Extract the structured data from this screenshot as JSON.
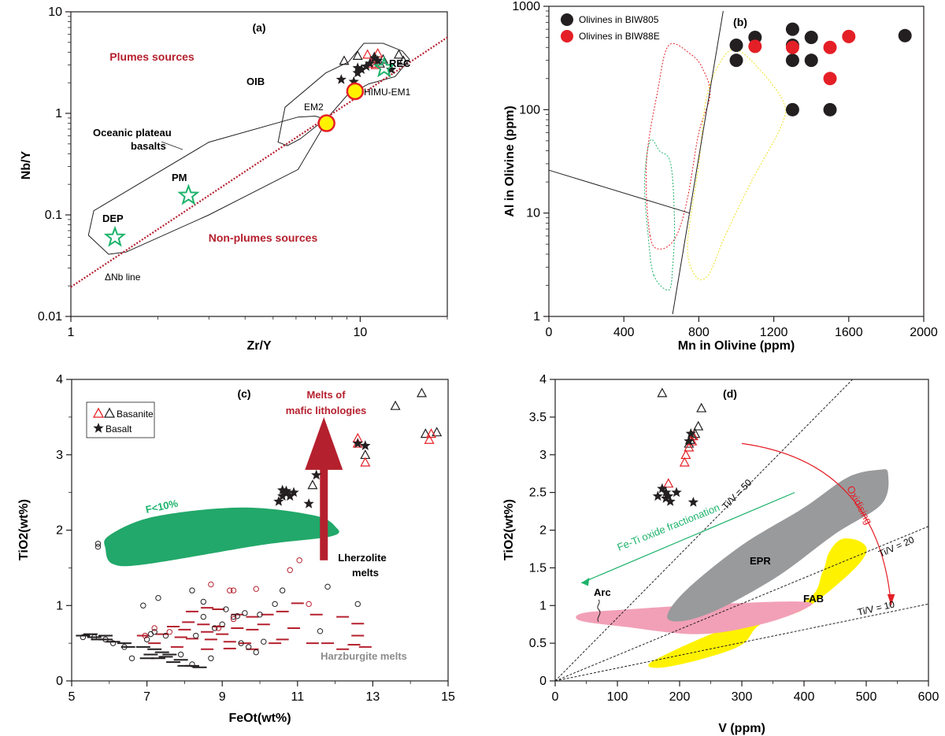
{
  "colors": {
    "black": "#231f20",
    "red": "#e41f26",
    "darkred": "#b5202e",
    "green": "#1db36b",
    "greenFill": "#22a86a",
    "gray": "#999a9c",
    "pink": "#f2a0b7",
    "yellow": "#fff200",
    "grayText": "#8c8c8c"
  },
  "chart_data": [
    {
      "panel": "(a)",
      "type": "scatter",
      "log_x": true,
      "log_y": true,
      "xlabel": "Zr/Y",
      "ylabel": "Nb/Y",
      "xlim": [
        1,
        20
      ],
      "ylim": [
        0.01,
        10
      ],
      "xticks": [
        {
          "v": 1,
          "label": "1"
        },
        {
          "v": 10,
          "label": "10"
        }
      ],
      "yticks": [
        {
          "v": 0.01,
          "label": "0.01"
        },
        {
          "v": 0.1,
          "label": "0.1"
        },
        {
          "v": 1,
          "label": "1"
        },
        {
          "v": 10,
          "label": "10"
        }
      ],
      "text": {
        "plumes": "Plumes sources",
        "nonplumes": "Non-plumes sources",
        "oib": "OIB",
        "oceanic1": "Oceanic plateau",
        "oceanic2": "basalts",
        "rec": "REC",
        "himu": "HIMU-EM1",
        "em2": "EM2",
        "pm": "PM",
        "dep": "DEP",
        "dnb": "ΔNb line"
      },
      "delta_nb_line": [
        [
          1,
          0.0195
        ],
        [
          20,
          5.6
        ]
      ],
      "oib_field": [
        [
          5.2,
          0.52
        ],
        [
          5.5,
          1.15
        ],
        [
          7.6,
          2.5
        ],
        [
          9.1,
          3.2
        ],
        [
          10.3,
          4.9
        ],
        [
          12,
          4.9
        ],
        [
          14,
          4.1
        ],
        [
          14.8,
          3.4
        ],
        [
          13.2,
          2.3
        ],
        [
          10.7,
          1.95
        ],
        [
          9,
          1.5
        ],
        [
          7.8,
          0.94
        ],
        [
          6.2,
          0.56
        ],
        [
          5.6,
          0.48
        ]
      ],
      "plateau_field": [
        [
          1.15,
          0.063
        ],
        [
          1.2,
          0.11
        ],
        [
          3,
          0.52
        ],
        [
          6.1,
          0.92
        ],
        [
          7,
          0.94
        ],
        [
          7.7,
          0.86
        ],
        [
          6.1,
          0.28
        ],
        [
          3,
          0.1
        ],
        [
          1.55,
          0.043
        ],
        [
          1.35,
          0.041
        ]
      ],
      "stars_black": [
        [
          8.6,
          2.15
        ],
        [
          9.5,
          2.05
        ],
        [
          9.8,
          2.5
        ],
        [
          10.1,
          2.7
        ],
        [
          10.5,
          2.9
        ],
        [
          9.8,
          2.8
        ],
        [
          11.5,
          3.3
        ],
        [
          12.8,
          2.7
        ],
        [
          10.8,
          3.1
        ],
        [
          11.2,
          3.5
        ]
      ],
      "triangles_black": [
        [
          8.8,
          3.3
        ],
        [
          9.8,
          3.7
        ],
        [
          11.2,
          3.6
        ],
        [
          11.7,
          3.1
        ],
        [
          13.6,
          3.8
        ],
        [
          14.1,
          3.3
        ],
        [
          12.0,
          3.4
        ]
      ],
      "triangles_red": [
        [
          10.6,
          3.8
        ],
        [
          11.0,
          3.1
        ],
        [
          11.5,
          3.9
        ],
        [
          11.3,
          3.0
        ]
      ],
      "ref_stars": [
        {
          "label": "PM",
          "x": 2.55,
          "y": 0.155
        },
        {
          "label": "DEP",
          "x": 1.42,
          "y": 0.06
        },
        {
          "label": "REC",
          "x": 12.1,
          "y": 2.8
        }
      ],
      "ref_circles": [
        {
          "label": "EM2",
          "x": 7.65,
          "y": 0.8
        },
        {
          "label": "HIMU-EM1",
          "x": 9.6,
          "y": 1.65
        }
      ]
    },
    {
      "panel": "(b)",
      "type": "scatter",
      "log_y": true,
      "xlabel": "Mn in Olivine (ppm)",
      "ylabel": "Al in Olivine (ppm)",
      "xlim": [
        0,
        2000
      ],
      "ylim": [
        1,
        1000
      ],
      "xticks": [
        0,
        400,
        800,
        1200,
        1600,
        2000
      ],
      "yticks": [
        {
          "v": 1,
          "label": "1"
        },
        {
          "v": 10,
          "label": "10"
        },
        {
          "v": 100,
          "label": "100"
        },
        {
          "v": 1000,
          "label": "1000"
        }
      ],
      "series": [
        {
          "name": "Olivines in BIW805",
          "color": "#231f20",
          "points": [
            [
              1000,
              420
            ],
            [
              1000,
              300
            ],
            [
              1100,
              500
            ],
            [
              1300,
              600
            ],
            [
              1300,
              420
            ],
            [
              1300,
              300
            ],
            [
              1400,
              500
            ],
            [
              1400,
              300
            ],
            [
              1300,
              100
            ],
            [
              1500,
              100
            ],
            [
              1900,
              520
            ]
          ]
        },
        {
          "name": "Olivines in BIW88E",
          "color": "#e41f26",
          "points": [
            [
              1100,
              410
            ],
            [
              1300,
              400
            ],
            [
              1500,
              400
            ],
            [
              1600,
              510
            ],
            [
              1500,
              200
            ]
          ]
        }
      ],
      "lines": [
        [
          [
            0,
            26
          ],
          [
            750,
            10
          ]
        ],
        [
          [
            660,
            1.05
          ],
          [
            930,
            900
          ]
        ]
      ]
    },
    {
      "panel": "(c)",
      "type": "scatter",
      "xlabel": "FeOt(wt%)",
      "ylabel": "TiO2(wt%)",
      "xlim": [
        5,
        15
      ],
      "ylim": [
        0,
        4
      ],
      "xticks": [
        5,
        7,
        9,
        11,
        13,
        15
      ],
      "yticks": [
        0,
        1,
        2,
        3,
        4
      ],
      "legend": [
        {
          "label": "Basanite"
        },
        {
          "label": "Basalt"
        }
      ],
      "text": {
        "melts1": "Melts of",
        "melts2": "mafic lithologies",
        "fl10": "F<10%",
        "lherz1": "Lherzolite",
        "lherz2": "melts",
        "harz": "Harzburgite melts"
      },
      "triangles_black": [
        [
          11.4,
          2.6
        ],
        [
          12.8,
          3.0
        ],
        [
          13.6,
          3.65
        ],
        [
          14.3,
          3.82
        ],
        [
          14.4,
          3.28
        ],
        [
          14.7,
          3.3
        ]
      ],
      "triangles_red": [
        [
          12.6,
          3.22
        ],
        [
          12.6,
          3.15
        ],
        [
          12.8,
          2.9
        ],
        [
          14.5,
          3.2
        ],
        [
          14.55,
          3.28
        ]
      ],
      "stars": [
        [
          10.5,
          2.38
        ],
        [
          10.6,
          2.45
        ],
        [
          10.7,
          2.5
        ],
        [
          10.8,
          2.45
        ],
        [
          10.9,
          2.5
        ],
        [
          10.7,
          2.52
        ],
        [
          11.3,
          2.35
        ],
        [
          11.5,
          2.73
        ],
        [
          12.6,
          3.15
        ],
        [
          12.8,
          3.12
        ],
        [
          10.6,
          2.53
        ]
      ],
      "circles_black": [
        [
          5.7,
          1.78
        ],
        [
          5.7,
          1.82
        ],
        [
          11.7,
          1.67
        ],
        [
          11.8,
          1.25
        ],
        [
          12.6,
          1.02
        ],
        [
          11.6,
          0.66
        ],
        [
          10.6,
          1.2
        ],
        [
          10.4,
          1.02
        ],
        [
          10.0,
          0.88
        ],
        [
          9.6,
          0.9
        ],
        [
          9.3,
          0.85
        ],
        [
          9.0,
          0.75
        ],
        [
          8.8,
          0.7
        ],
        [
          8.5,
          0.85
        ],
        [
          8.5,
          1.05
        ],
        [
          8.3,
          0.6
        ],
        [
          8.2,
          1.2
        ],
        [
          7.9,
          0.35
        ],
        [
          7.5,
          0.6
        ],
        [
          7.2,
          0.65
        ],
        [
          7.0,
          0.55
        ],
        [
          7.3,
          1.1
        ],
        [
          6.9,
          1.0
        ],
        [
          6.6,
          0.3
        ],
        [
          6.4,
          0.45
        ],
        [
          6.1,
          0.5
        ],
        [
          5.9,
          0.55
        ],
        [
          5.6,
          0.58
        ],
        [
          5.3,
          0.58
        ],
        [
          8.7,
          0.3
        ],
        [
          8.2,
          0.22
        ],
        [
          7.1,
          0.62
        ],
        [
          9.9,
          0.38
        ],
        [
          9.5,
          0.5
        ],
        [
          9.1,
          0.95
        ],
        [
          9.7,
          0.45
        ],
        [
          10.1,
          0.52
        ],
        [
          9.4,
          0.86
        ]
      ],
      "circles_red": [
        [
          8.7,
          1.28
        ],
        [
          9.2,
          1.2
        ],
        [
          9.3,
          1.2
        ],
        [
          9.9,
          1.22
        ],
        [
          10.8,
          1.47
        ],
        [
          11.05,
          1.6
        ],
        [
          11.3,
          1.02
        ],
        [
          9.3,
          0.82
        ],
        [
          8.9,
          0.7
        ],
        [
          7.2,
          0.7
        ],
        [
          7.6,
          0.65
        ],
        [
          6.95,
          0.6
        ]
      ],
      "dashes_red": [
        [
          8.2,
          0.92
        ],
        [
          8.6,
          0.97
        ],
        [
          8.9,
          0.95
        ],
        [
          9.4,
          0.88
        ],
        [
          9.8,
          0.85
        ],
        [
          10.2,
          0.88
        ],
        [
          10.6,
          0.92
        ],
        [
          8.1,
          0.78
        ],
        [
          8.5,
          0.75
        ],
        [
          8.9,
          0.72
        ],
        [
          9.4,
          0.7
        ],
        [
          9.8,
          0.68
        ],
        [
          7.7,
          0.72
        ],
        [
          8.0,
          0.68
        ],
        [
          8.6,
          0.65
        ],
        [
          9.0,
          0.62
        ],
        [
          7.4,
          0.62
        ],
        [
          7.9,
          0.58
        ],
        [
          8.2,
          0.56
        ],
        [
          8.7,
          0.55
        ],
        [
          9.2,
          0.52
        ],
        [
          9.6,
          0.5
        ],
        [
          11.0,
          1.03
        ],
        [
          11.5,
          0.88
        ],
        [
          12.2,
          0.85
        ],
        [
          12.6,
          0.76
        ],
        [
          12.6,
          0.6
        ],
        [
          10.9,
          0.7
        ],
        [
          11.4,
          0.5
        ],
        [
          10.1,
          0.75
        ],
        [
          10.6,
          0.55
        ],
        [
          6.9,
          0.6
        ],
        [
          7.2,
          0.5
        ],
        [
          7.8,
          0.45
        ],
        [
          8.6,
          0.42
        ],
        [
          9.2,
          0.43
        ],
        [
          9.8,
          0.42
        ],
        [
          10.4,
          0.5
        ],
        [
          11.8,
          0.5
        ],
        [
          12.2,
          0.42
        ],
        [
          12.5,
          0.48
        ],
        [
          12.8,
          0.45
        ]
      ],
      "dashes_black": [
        [
          5.3,
          0.6
        ],
        [
          5.6,
          0.58
        ],
        [
          5.7,
          0.55
        ],
        [
          5.9,
          0.55
        ],
        [
          6.1,
          0.52
        ],
        [
          5.9,
          0.6
        ],
        [
          5.5,
          0.62
        ],
        [
          6.4,
          0.5
        ],
        [
          6.5,
          0.45
        ],
        [
          6.9,
          0.45
        ],
        [
          7.2,
          0.42
        ],
        [
          7.4,
          0.38
        ],
        [
          7.6,
          0.35
        ],
        [
          7.0,
          0.3
        ],
        [
          7.3,
          0.3
        ],
        [
          7.5,
          0.32
        ],
        [
          7.9,
          0.28
        ],
        [
          7.1,
          0.35
        ],
        [
          7.7,
          0.25
        ],
        [
          8.0,
          0.2
        ],
        [
          8.2,
          0.2
        ],
        [
          8.4,
          0.18
        ]
      ],
      "f_ellipse": [
        [
          5.9,
          1.75
        ],
        [
          6.0,
          1.93
        ],
        [
          7.2,
          2.18
        ],
        [
          9.5,
          2.3
        ],
        [
          11.4,
          2.2
        ],
        [
          12.0,
          2.05
        ],
        [
          11.9,
          1.92
        ],
        [
          10.0,
          1.8
        ],
        [
          7.0,
          1.55
        ],
        [
          6.1,
          1.55
        ]
      ]
    },
    {
      "panel": "(d)",
      "type": "scatter",
      "xlabel": "V (ppm)",
      "ylabel": "TiO2(wt%)",
      "xlim": [
        0,
        600
      ],
      "ylim": [
        0,
        4
      ],
      "xticks": [
        0,
        100,
        200,
        300,
        400,
        500,
        600
      ],
      "yticks": [
        {
          "v": 0,
          "label": "0"
        },
        {
          "v": 0.5,
          "label": "0.5"
        },
        {
          "v": 1,
          "label": "1"
        },
        {
          "v": 1.5,
          "label": "1.5"
        },
        {
          "v": 2,
          "label": "2"
        },
        {
          "v": 2.5,
          "label": "2.5"
        },
        {
          "v": 3,
          "label": "3"
        },
        {
          "v": 3.5,
          "label": "3.5"
        },
        {
          "v": 4,
          "label": "4"
        }
      ],
      "text": {
        "tv50": "Ti/V = 50",
        "tv20": "Ti/V = 20",
        "tv10": "Ti/V = 10",
        "fti": "Fe-Ti oxide fractionation",
        "oxid": "Oxidising",
        "epr": "EPR",
        "fab": "FAB",
        "arc": "Arc"
      },
      "triangles_black": [
        [
          172,
          3.82
        ],
        [
          235,
          3.62
        ],
        [
          230,
          3.38
        ],
        [
          225,
          3.28
        ],
        [
          215,
          3.15
        ],
        [
          220,
          3.25
        ],
        [
          217,
          3.2
        ]
      ],
      "triangles_red": [
        [
          208,
          2.9
        ],
        [
          210,
          3.0
        ],
        [
          215,
          3.1
        ],
        [
          220,
          3.18
        ],
        [
          222,
          3.25
        ],
        [
          182,
          2.62
        ]
      ],
      "stars": [
        [
          165,
          2.45
        ],
        [
          172,
          2.55
        ],
        [
          178,
          2.5
        ],
        [
          182,
          2.45
        ],
        [
          185,
          2.38
        ],
        [
          195,
          2.5
        ],
        [
          178,
          2.42
        ],
        [
          222,
          2.37
        ],
        [
          215,
          3.18
        ],
        [
          218,
          3.28
        ]
      ],
      "epr": [
        [
          180,
          0.85
        ],
        [
          210,
          1.2
        ],
        [
          300,
          1.8
        ],
        [
          400,
          2.3
        ],
        [
          470,
          2.7
        ],
        [
          520,
          2.8
        ],
        [
          535,
          2.75
        ],
        [
          525,
          2.35
        ],
        [
          450,
          1.95
        ],
        [
          360,
          1.4
        ],
        [
          270,
          0.98
        ],
        [
          210,
          0.8
        ]
      ],
      "pink": [
        [
          40,
          0.8
        ],
        [
          45,
          0.9
        ],
        [
          120,
          0.95
        ],
        [
          260,
          1.02
        ],
        [
          400,
          1.05
        ],
        [
          400,
          0.95
        ],
        [
          330,
          0.75
        ],
        [
          230,
          0.62
        ],
        [
          110,
          0.72
        ]
      ],
      "yellow": [
        [
          150,
          0.2
        ],
        [
          170,
          0.32
        ],
        [
          260,
          0.65
        ],
        [
          400,
          1.05
        ],
        [
          430,
          1.45
        ],
        [
          440,
          1.7
        ],
        [
          460,
          1.88
        ],
        [
          490,
          1.85
        ],
        [
          500,
          1.7
        ],
        [
          470,
          1.4
        ],
        [
          400,
          0.95
        ],
        [
          330,
          0.75
        ],
        [
          300,
          0.48
        ],
        [
          240,
          0.3
        ],
        [
          175,
          0.18
        ]
      ]
    }
  ]
}
